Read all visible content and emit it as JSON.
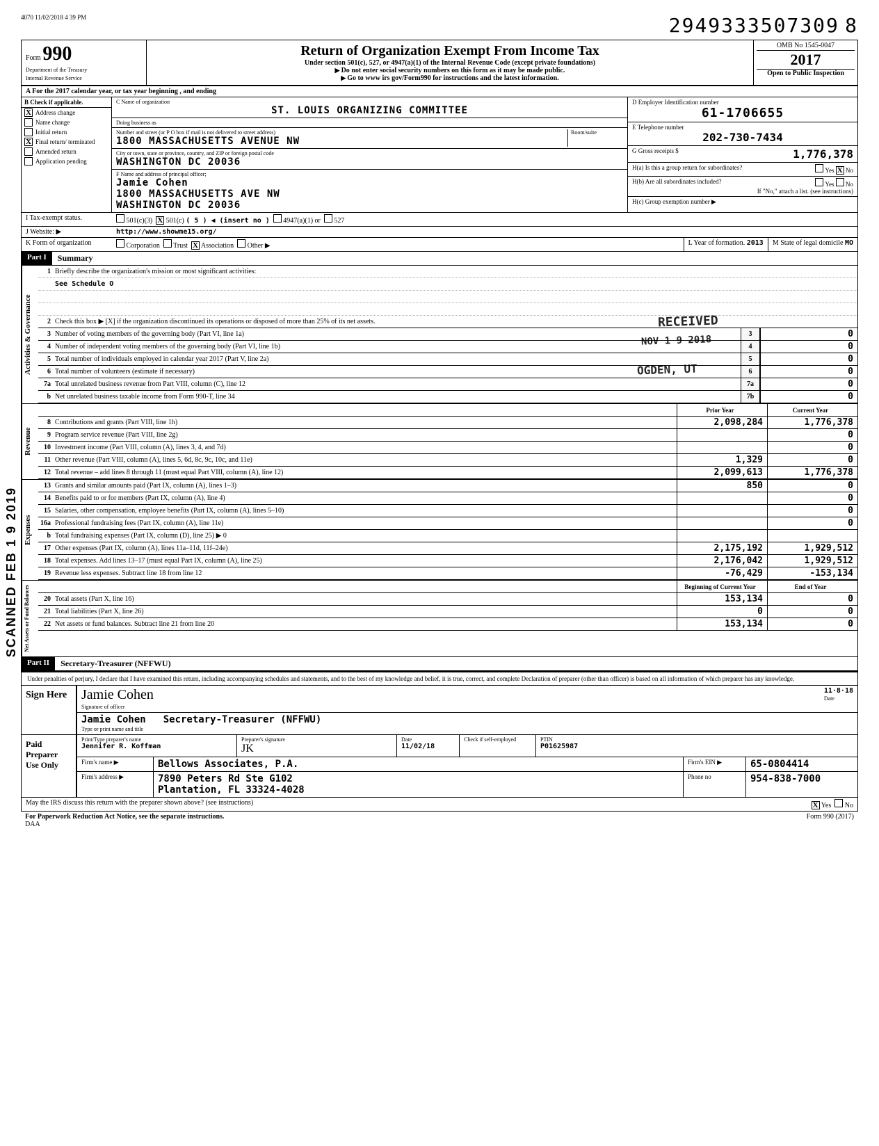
{
  "meta": {
    "print_ts": "4070 11/02/2018 4 39 PM",
    "stamp_number": "2949333507309",
    "stamp_suffix": "8"
  },
  "header": {
    "form_label": "Form",
    "form_number": "990",
    "title": "Return of Organization Exempt From Income Tax",
    "subtitle": "Under section 501(c), 527, or 4947(a)(1) of the Internal Revenue Code (except private foundations)",
    "note1": "Do not enter social security numbers on this form as it may be made public.",
    "note2": "Go to www irs gov/Form990 for instructions and the latest information.",
    "dept": "Department of the Treasury",
    "irs": "Internal Revenue Service",
    "omb": "OMB No  1545-0047",
    "year": "2017",
    "open": "Open to Public Inspection"
  },
  "row_a": "A   For the 2017 calendar year, or tax year beginning                                  , and ending",
  "col_b": {
    "hdr": "B  Check if applicable.",
    "items": [
      {
        "chk": "X",
        "label": "Address change"
      },
      {
        "chk": "",
        "label": "Name change"
      },
      {
        "chk": "",
        "label": "Initial return"
      },
      {
        "chk": "X",
        "label": "Final return/ terminated"
      },
      {
        "chk": "",
        "label": "Amended return"
      },
      {
        "chk": "",
        "label": "Application pending"
      }
    ]
  },
  "col_c": {
    "name_label": "C  Name of organization",
    "name": "ST. LOUIS ORGANIZING COMMITTEE",
    "dba_label": "Doing business as",
    "dba": "",
    "addr_label": "Number and street (or P O  box if mail is not delivered to street address)",
    "addr": "1800 MASSACHUSETTS AVENUE NW",
    "room_label": "Room/suite",
    "city_label": "City or town, state or province, country, and ZIP or foreign postal code",
    "city": "WASHINGTON            DC  20036",
    "f_label": "F  Name and address of principal officer;",
    "officer": "Jamie Cohen",
    "officer_addr": "1800 MASSACHUSETTS AVE NW",
    "officer_city": "WASHINGTON            DC  20036"
  },
  "col_d": {
    "ein_label": "D  Employer Identification number",
    "ein": "61-1706655",
    "tel_label": "E  Telephone number",
    "tel": "202-730-7434",
    "gross_label": "G  Gross receipts $",
    "gross": "1,776,378",
    "h_a": "H(a)  Is this a group return for subordinates?",
    "h_a_yes": "Yes",
    "h_a_no": "No",
    "h_a_chk": "X",
    "h_b": "H(b)  Are all subordinates included?",
    "h_b_yes": "Yes",
    "h_b_no": "No",
    "h_b_note": "If \"No,\" attach a list. (see instructions)",
    "h_c": "H(c)  Group exemption number ▶"
  },
  "ijk": {
    "i_label": "I     Tax-exempt status.",
    "i_501c3": "501(c)(3)",
    "i_501c": "501(c)",
    "i_501c_chk": "X",
    "i_insert": "(  5 ) ◀ (insert no )",
    "i_4947": "4947(a)(1) or",
    "i_527": "527",
    "j_label": "J     Website: ▶",
    "j_val": "http://www.showme15.org/",
    "k_label": "K    Form of organization",
    "k_corp": "Corporation",
    "k_trust": "Trust",
    "k_assoc": "Association",
    "k_assoc_chk": "X",
    "k_other": "Other ▶",
    "l_label": "L   Year of formation.",
    "l_val": "2013",
    "m_label": "M  State of legal domicile",
    "m_val": "MO"
  },
  "part1": {
    "hdr": "Part I",
    "title": "Summary",
    "gov_tab": "Activities & Governance",
    "rev_tab": "Revenue",
    "exp_tab": "Expenses",
    "net_tab": "Net Assets or Fund Balances",
    "line1": "Briefly describe the organization's mission or most significant activities:",
    "line1_val": "See Schedule O",
    "line2": "Check this box ▶ [X]  if the organization discontinued its operations or disposed of more than 25% of its net assets.",
    "lines_gov": [
      {
        "n": "3",
        "t": "Number of voting members of the governing body (Part VI, line 1a)",
        "box": "3",
        "v": "0"
      },
      {
        "n": "4",
        "t": "Number of independent voting members of the governing body (Part VI, line 1b)",
        "box": "4",
        "v": "0"
      },
      {
        "n": "5",
        "t": "Total number of individuals employed in calendar year 2017 (Part V, line 2a)",
        "box": "5",
        "v": "0"
      },
      {
        "n": "6",
        "t": "Total number of volunteers (estimate if necessary)",
        "box": "6",
        "v": "0"
      },
      {
        "n": "7a",
        "t": "Total unrelated business revenue from Part VIII, column (C), line 12",
        "box": "7a",
        "v": "0"
      },
      {
        "n": "b",
        "t": "Net unrelated business taxable income from Form 990-T, line 34",
        "box": "7b",
        "v": "0"
      }
    ],
    "col_prior": "Prior Year",
    "col_current": "Current Year",
    "lines_rev": [
      {
        "n": "8",
        "t": "Contributions and grants (Part VIII, line 1h)",
        "p": "2,098,284",
        "c": "1,776,378"
      },
      {
        "n": "9",
        "t": "Program service revenue (Part VIII, line 2g)",
        "p": "",
        "c": "0"
      },
      {
        "n": "10",
        "t": "Investment income (Part VIII, column (A), lines 3, 4, and 7d)",
        "p": "",
        "c": "0"
      },
      {
        "n": "11",
        "t": "Other revenue (Part VIII, column (A), lines 5, 6d, 8c, 9c, 10c, and 11e)",
        "p": "1,329",
        "c": "0"
      },
      {
        "n": "12",
        "t": "Total revenue – add lines 8 through 11 (must equal Part VIII, column (A), line 12)",
        "p": "2,099,613",
        "c": "1,776,378"
      }
    ],
    "lines_exp": [
      {
        "n": "13",
        "t": "Grants and similar amounts paid (Part IX, column (A), lines 1–3)",
        "p": "850",
        "c": "0"
      },
      {
        "n": "14",
        "t": "Benefits paid to or for members (Part IX, column (A), line 4)",
        "p": "",
        "c": "0"
      },
      {
        "n": "15",
        "t": "Salaries, other compensation, employee benefits (Part IX, column (A), lines 5–10)",
        "p": "",
        "c": "0"
      },
      {
        "n": "16a",
        "t": "Professional fundraising fees (Part IX, column (A), line 11e)",
        "p": "",
        "c": "0"
      },
      {
        "n": "b",
        "t": "Total fundraising expenses (Part IX, column (D), line 25) ▶                                   0",
        "p": "",
        "c": ""
      },
      {
        "n": "17",
        "t": "Other expenses (Part IX, column (A), lines 11a–11d, 11f–24e)",
        "p": "2,175,192",
        "c": "1,929,512"
      },
      {
        "n": "18",
        "t": "Total expenses. Add lines 13–17 (must equal Part IX, column (A), line 25)",
        "p": "2,176,042",
        "c": "1,929,512"
      },
      {
        "n": "19",
        "t": "Revenue less expenses. Subtract line 18 from line 12",
        "p": "-76,429",
        "c": "-153,134"
      }
    ],
    "col_begin": "Beginning of Current Year",
    "col_end": "End of Year",
    "lines_net": [
      {
        "n": "20",
        "t": "Total assets (Part X, line 16)",
        "p": "153,134",
        "c": "0"
      },
      {
        "n": "21",
        "t": "Total liabilities (Part X, line 26)",
        "p": "0",
        "c": "0"
      },
      {
        "n": "22",
        "t": "Net assets or fund balances. Subtract line 21 from line 20",
        "p": "153,134",
        "c": "0"
      }
    ]
  },
  "stamps": {
    "received": "RECEIVED",
    "date": "NOV 1 9 2018",
    "ogden": "OGDEN, UT",
    "side": "SCANNED FEB 1 9 2019"
  },
  "part2": {
    "hdr": "Part II",
    "title": "Secretary-Treasurer  (NFFWU)",
    "decl": "Under penalties of perjury, I declare that I have examined this return, including accompanying schedules and statements, and to the best of my knowledge and belief, it is true, correct, and complete  Declaration of preparer (other than officer) is based on all information of which preparer has any knowledge.",
    "sign_here": "Sign Here",
    "sig_of_officer": "Signature of officer",
    "sig_script": "Jamie Cohen",
    "sig_date": "11·8·18",
    "date_label": "Date",
    "name_title": "Jamie Cohen",
    "type_label": "Type or print name and title"
  },
  "preparer": {
    "label": "Paid Preparer Use Only",
    "name_label": "Print/Type preparer's name",
    "name": "Jennifer R. Koffman",
    "sig_label": "Preparer's signature",
    "date_label": "Date",
    "date": "11/02/18",
    "check_label": "Check        if self-employed",
    "ptin_label": "PTIN",
    "ptin": "P01625987",
    "firm_label": "Firm's name    ▶",
    "firm": "Bellows Associates, P.A.",
    "ein_label": "Firm's EIN ▶",
    "ein": "65-0804414",
    "addr_label": "Firm's address  ▶",
    "addr1": "7890 Peters Rd Ste G102",
    "addr2": "Plantation, FL   33324-4028",
    "phone_label": "Phone no",
    "phone": "954-838-7000"
  },
  "bottom": {
    "q": "May the IRS discuss this return with the preparer shown above? (see instructions)",
    "yes": "Yes",
    "yes_chk": "X",
    "no": "No"
  },
  "footer": {
    "left": "For Paperwork Reduction Act Notice, see the separate instructions.",
    "daa": "DAA",
    "right": "Form 990 (2017)"
  }
}
